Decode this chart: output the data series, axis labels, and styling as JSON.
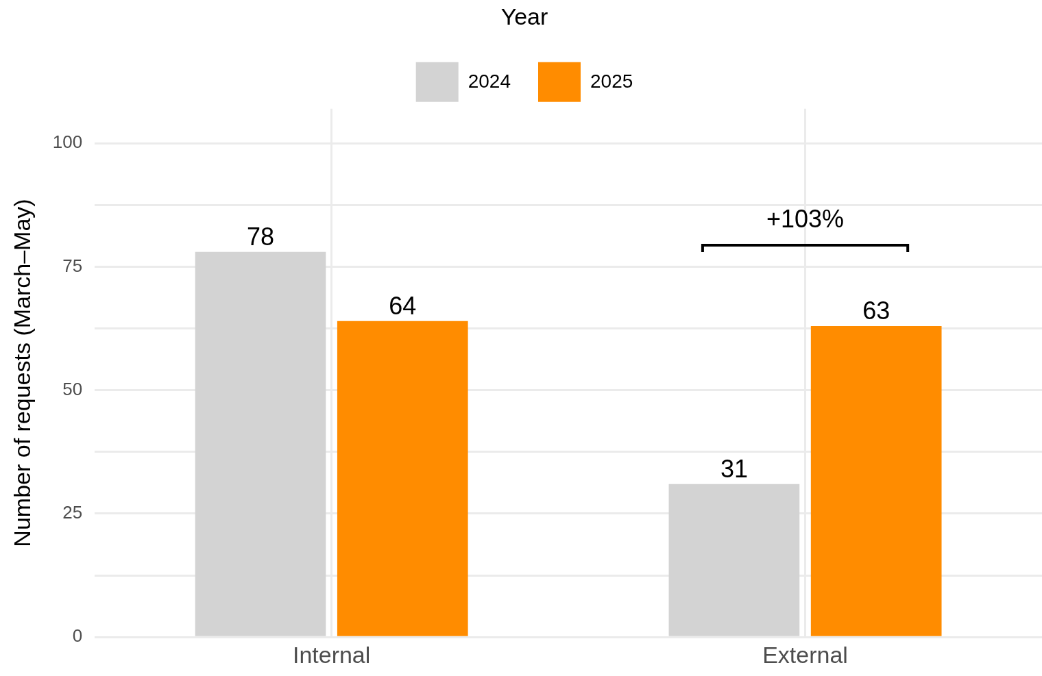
{
  "chart_data": {
    "type": "bar",
    "ylabel": "Number of requests (March–May)",
    "legend_title": "Year",
    "legend": "top",
    "categories": [
      "Internal",
      "External"
    ],
    "series": [
      {
        "name": "2024",
        "color": "#d3d3d3",
        "values": [
          78,
          31
        ]
      },
      {
        "name": "2025",
        "color": "#ff8c00",
        "values": [
          64,
          63
        ]
      }
    ],
    "ylim": [
      0,
      107
    ],
    "yticks": [
      0,
      {
        "value": 12.5,
        "label": null
      },
      25,
      {
        "value": 37.5,
        "label": null
      },
      50,
      {
        "value": 62.5,
        "label": null
      },
      75,
      {
        "value": 87.5,
        "label": null
      },
      100
    ],
    "grid": true,
    "data_labels": true,
    "annotations": [
      "+103%"
    ]
  }
}
